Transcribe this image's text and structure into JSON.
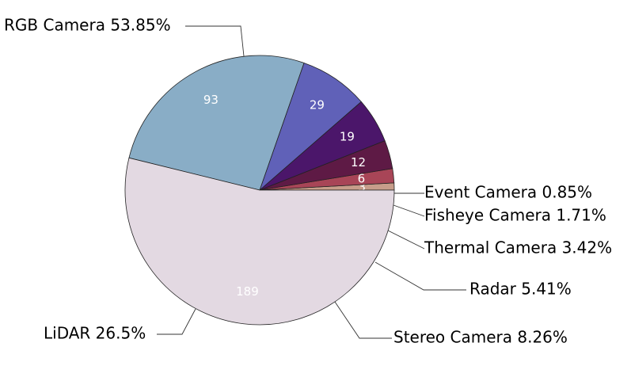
{
  "chart_data": {
    "type": "pie",
    "title": "",
    "slices": [
      {
        "label": "Event Camera",
        "value": 3,
        "percent_label": "0.85%",
        "color": "#c79d8a"
      },
      {
        "label": "Fisheye Camera",
        "value": 6,
        "percent_label": "1.71%",
        "color": "#a84557"
      },
      {
        "label": "Thermal Camera",
        "value": 12,
        "percent_label": "3.42%",
        "color": "#5e1a45"
      },
      {
        "label": "Radar",
        "value": 19,
        "percent_label": "5.41%",
        "color": "#4b166a"
      },
      {
        "label": "Stereo Camera",
        "value": 29,
        "percent_label": "8.26%",
        "color": "#6061b8"
      },
      {
        "label": "LiDAR",
        "value": 93,
        "percent_label": "26.5%",
        "color": "#89adc6"
      },
      {
        "label": "RGB Camera",
        "value": 189,
        "percent_label": "53.85%",
        "color": "#e3d9e2"
      }
    ]
  }
}
